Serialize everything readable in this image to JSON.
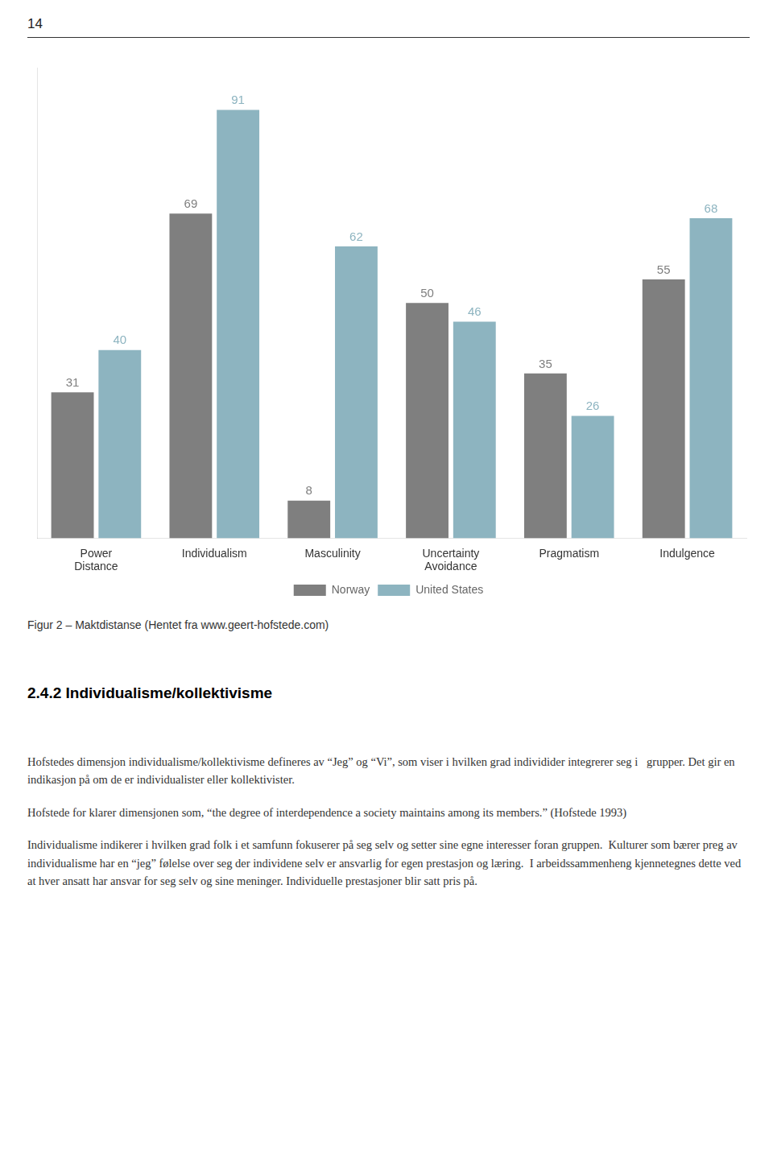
{
  "page_number": "14",
  "chart_data": {
    "type": "bar",
    "categories": [
      "Power\nDistance",
      "Individualism",
      "Masculinity",
      "Uncertainty\nAvoidance",
      "Pragmatism",
      "Indulgence"
    ],
    "series": [
      {
        "name": "Norway",
        "color": "#7f7f7f",
        "values": [
          31,
          69,
          8,
          50,
          35,
          55
        ]
      },
      {
        "name": "United States",
        "color": "#8db4c0",
        "values": [
          40,
          91,
          62,
          46,
          26,
          68
        ]
      }
    ],
    "ylim": [
      0,
      100
    ],
    "grid": false,
    "legend": "bottom",
    "data_labels": true,
    "tick_labels": "x"
  },
  "figure_caption": "Figur 2 – Maktdistanse (Hentet fra www.geert-hofstede.com)",
  "section_heading": "2.4.2 Individualisme/kollektivisme",
  "body_paragraphs": [
    "Hofstedes dimensjon individualisme/kollektivisme defineres av “Jeg” og “Vi”, som viser i hvilken grad individider integrerer seg i   grupper. Det gir en indikasjon på om de er individualister eller kollektivister.",
    "Hofstede for klarer dimensjonen som, “the degree of interdependence a society maintains among its members.” (Hofstede 1993)",
    "Individualisme indikerer i hvilken grad folk i et samfunn fokuserer på seg selv og setter sine egne interesser foran gruppen.  Kulturer som bærer preg av individualisme har en “jeg” følelse over seg der individene selv er ansvarlig for egen prestasjon og læring.  I arbeidssammenheng kjennetegnes dette ved at hver ansatt har ansvar for seg selv og sine meninger. Individuelle prestasjoner blir satt pris på."
  ]
}
